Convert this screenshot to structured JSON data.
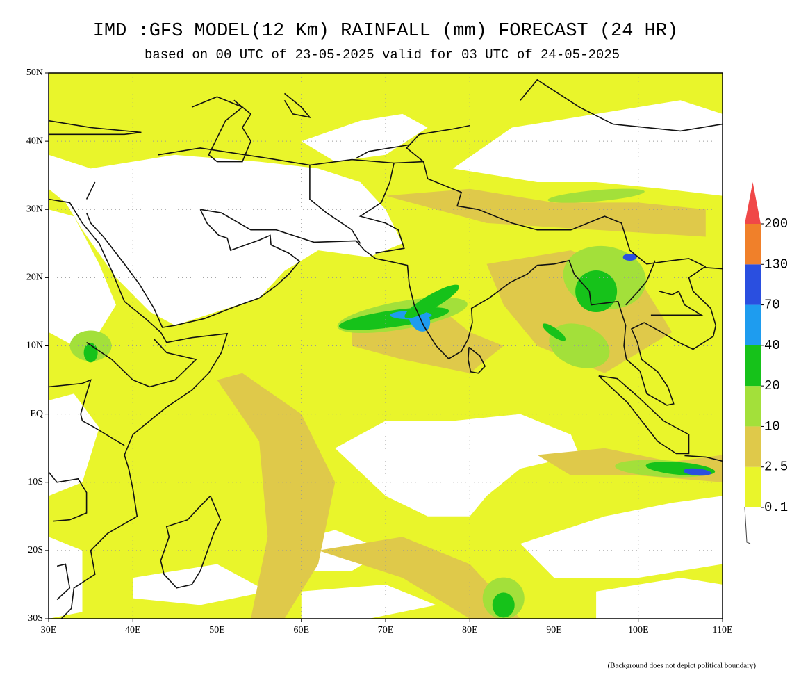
{
  "title": "IMD :GFS MODEL(12 Km) RAINFALL (mm) FORECAST (24 HR)",
  "subtitle": "based on 00 UTC of 23-05-2025 valid for 03 UTC of 24-05-2025",
  "map": {
    "lat_labels": [
      "50N",
      "40N",
      "30N",
      "20N",
      "10N",
      "EQ",
      "10S",
      "20S",
      "30S"
    ],
    "lon_labels": [
      "30E",
      "40E",
      "50E",
      "60E",
      "70E",
      "80E",
      "90E",
      "100E",
      "110E"
    ]
  },
  "legend": {
    "levels": [
      "0.1",
      "2.5",
      "10",
      "20",
      "40",
      "70",
      "130",
      "200"
    ],
    "colors": [
      "#e9f52b",
      "#dfc94a",
      "#a3e03a",
      "#16c21a",
      "#1e9cef",
      "#2a4fe0",
      "#f0802a",
      "#f04848"
    ]
  },
  "footnote": "(Background does not depict political boundary)"
}
